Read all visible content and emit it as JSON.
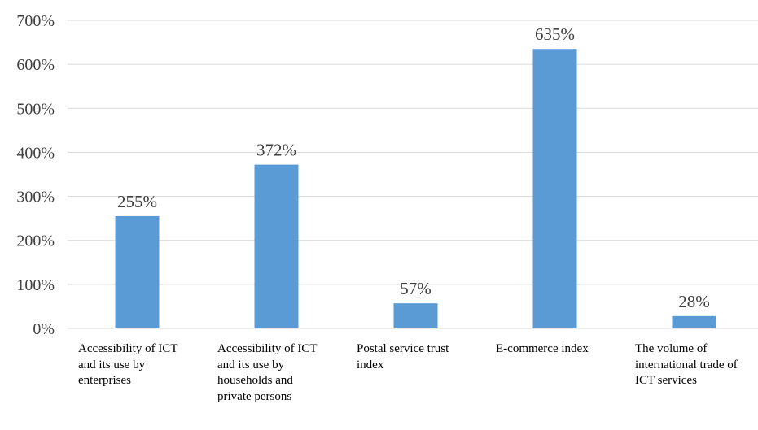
{
  "chart_data": {
    "type": "bar",
    "title": "",
    "xlabel": "",
    "ylabel": "",
    "categories": [
      "Accessibility of ICT and its use by enterprises",
      "Accessibility of ICT and its use by households and private persons",
      "Postal service trust index",
      "E-commerce index",
      "The volume of international trade of ICT services"
    ],
    "values": [
      255,
      372,
      57,
      635,
      28
    ],
    "value_labels": [
      "255%",
      "372%",
      "57%",
      "635%",
      "28%"
    ],
    "ylim": [
      0,
      700
    ],
    "yticks": [
      0,
      100,
      200,
      300,
      400,
      500,
      600,
      700
    ],
    "ytick_labels": [
      "0%",
      "100%",
      "200%",
      "300%",
      "400%",
      "500%",
      "600%",
      "700%"
    ],
    "grid": true,
    "legend": false,
    "colors": {
      "bar": "#5b9bd5",
      "grid": "#d9d9d9",
      "axis": "#d9d9d9"
    }
  }
}
